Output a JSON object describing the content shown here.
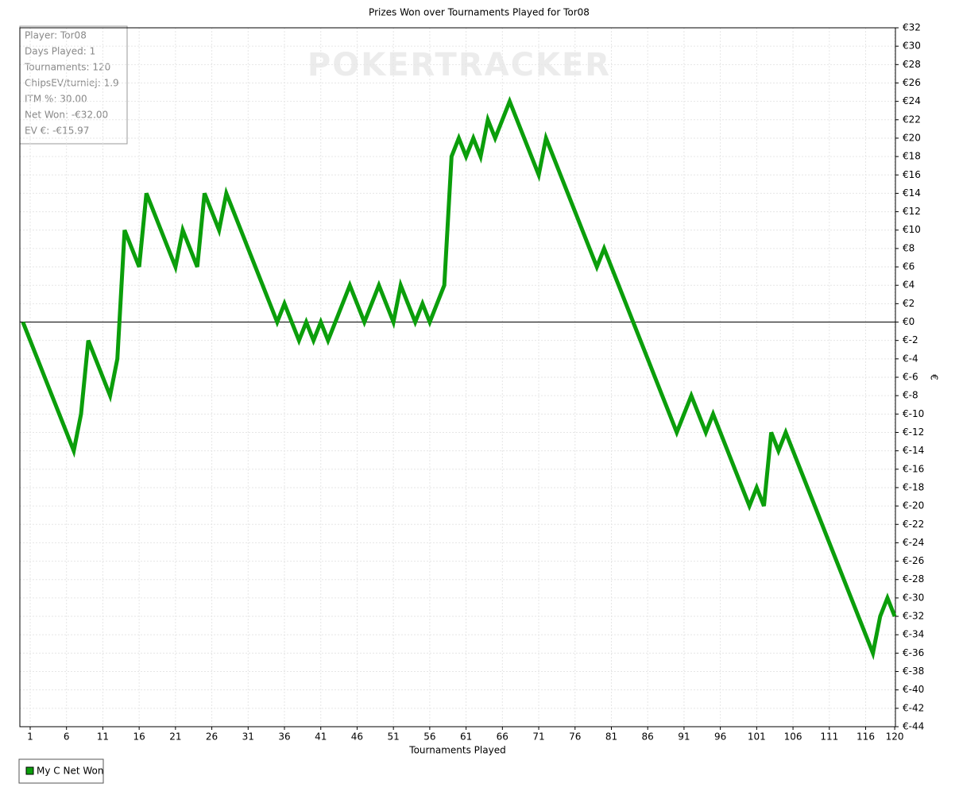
{
  "chart_data": {
    "type": "line",
    "title": "Prizes Won over Tournaments Played for Tor08",
    "x_label": "Tournaments Played",
    "y_label": "€",
    "watermark": "POKERTRACKER",
    "stats": [
      "Player: Tor08",
      "Days Played: 1",
      "Tournaments: 120",
      "ChipsEV/turniej: 1.9",
      "ITM %: 30.00",
      "Net Won: -€32.00",
      "EV €: -€15.97"
    ],
    "x": [
      0,
      1,
      2,
      3,
      4,
      5,
      6,
      7,
      8,
      9,
      10,
      11,
      12,
      13,
      14,
      15,
      16,
      17,
      18,
      19,
      20,
      21,
      22,
      23,
      24,
      25,
      26,
      27,
      28,
      29,
      30,
      31,
      32,
      33,
      34,
      35,
      36,
      37,
      38,
      39,
      40,
      41,
      42,
      43,
      44,
      45,
      46,
      47,
      48,
      49,
      50,
      51,
      52,
      53,
      54,
      55,
      56,
      57,
      58,
      59,
      60,
      61,
      62,
      63,
      64,
      65,
      66,
      67,
      68,
      69,
      70,
      71,
      72,
      73,
      74,
      75,
      76,
      77,
      78,
      79,
      80,
      81,
      82,
      83,
      84,
      85,
      86,
      87,
      88,
      89,
      90,
      91,
      92,
      93,
      94,
      95,
      96,
      97,
      98,
      99,
      100,
      101,
      102,
      103,
      104,
      105,
      106,
      107,
      108,
      109,
      110,
      111,
      112,
      113,
      114,
      115,
      116,
      117,
      118,
      119,
      120
    ],
    "series": [
      {
        "name": "My C Net Won",
        "color": "#0b9e0b",
        "values": [
          0,
          -2,
          -4,
          -6,
          -8,
          -10,
          -12,
          -14,
          -10,
          -2,
          -4,
          -6,
          -8,
          -4,
          10,
          8,
          6,
          14,
          12,
          10,
          8,
          6,
          10,
          8,
          6,
          14,
          12,
          10,
          14,
          12,
          10,
          8,
          6,
          4,
          2,
          0,
          2,
          0,
          -2,
          0,
          -2,
          0,
          -2,
          0,
          2,
          4,
          2,
          0,
          2,
          4,
          2,
          0,
          4,
          2,
          0,
          2,
          0,
          2,
          4,
          18,
          20,
          18,
          20,
          18,
          22,
          20,
          22,
          24,
          22,
          20,
          18,
          16,
          20,
          18,
          16,
          14,
          12,
          10,
          8,
          6,
          8,
          6,
          4,
          2,
          0,
          -2,
          -4,
          -6,
          -8,
          -10,
          -12,
          -10,
          -8,
          -10,
          -12,
          -10,
          -12,
          -14,
          -16,
          -18,
          -20,
          -18,
          -20,
          -12,
          -14,
          -12,
          -14,
          -16,
          -18,
          -20,
          -22,
          -24,
          -26,
          -28,
          -30,
          -32,
          -34,
          -36,
          -32,
          -30,
          -32
        ]
      }
    ],
    "xlim": [
      -0.42,
      120.1
    ],
    "xticks": [
      1,
      6,
      11,
      16,
      21,
      26,
      31,
      36,
      41,
      46,
      51,
      56,
      61,
      66,
      71,
      76,
      81,
      86,
      91,
      96,
      101,
      106,
      111,
      116,
      120
    ],
    "ylim": [
      -44,
      32
    ],
    "yticks": [
      {
        "value": 32,
        "label": "€32"
      },
      {
        "value": 30,
        "label": "€30"
      },
      {
        "value": 28,
        "label": "€28"
      },
      {
        "value": 26,
        "label": "€26"
      },
      {
        "value": 24,
        "label": "€24"
      },
      {
        "value": 22,
        "label": "€22"
      },
      {
        "value": 20,
        "label": "€20"
      },
      {
        "value": 18,
        "label": "€18"
      },
      {
        "value": 16,
        "label": "€16"
      },
      {
        "value": 14,
        "label": "€14"
      },
      {
        "value": 12,
        "label": "€12"
      },
      {
        "value": 10,
        "label": "€10"
      },
      {
        "value": 8,
        "label": "€8"
      },
      {
        "value": 6,
        "label": "€6"
      },
      {
        "value": 4,
        "label": "€4"
      },
      {
        "value": 2,
        "label": "€2"
      },
      {
        "value": 0,
        "label": "€0"
      },
      {
        "value": -2,
        "label": "€-2"
      },
      {
        "value": -4,
        "label": "€-4"
      },
      {
        "value": -6,
        "label": "€-6"
      },
      {
        "value": -8,
        "label": "€-8"
      },
      {
        "value": -10,
        "label": "€-10"
      },
      {
        "value": -12,
        "label": "€-12"
      },
      {
        "value": -14,
        "label": "€-14"
      },
      {
        "value": -16,
        "label": "€-16"
      },
      {
        "value": -18,
        "label": "€-18"
      },
      {
        "value": -20,
        "label": "€-20"
      },
      {
        "value": -22,
        "label": "€-22"
      },
      {
        "value": -24,
        "label": "€-24"
      },
      {
        "value": -26,
        "label": "€-26"
      },
      {
        "value": -28,
        "label": "€-28"
      },
      {
        "value": -30,
        "label": "€-30"
      },
      {
        "value": -32,
        "label": "€-32"
      },
      {
        "value": -34,
        "label": "€-34"
      },
      {
        "value": -36,
        "label": "€-36"
      },
      {
        "value": -38,
        "label": "€-38"
      },
      {
        "value": -40,
        "label": "€-40"
      },
      {
        "value": -42,
        "label": "€-42"
      },
      {
        "value": -44,
        "label": "€-44"
      }
    ],
    "grid": true
  }
}
